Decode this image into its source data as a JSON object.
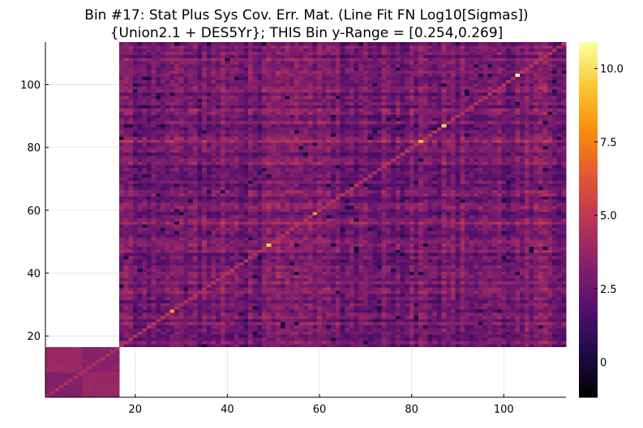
{
  "chart_data": {
    "type": "heatmap",
    "title": [
      "Bin #17: Stat Plus Sys Cov. Err. Mat. (Line Fit FN Log10[Sigmas])",
      "{Union2.1 + DES5Yr}; THIS Bin y-Range = [0.254,0.269]"
    ],
    "xlabel": "",
    "ylabel": "",
    "xlim": [
      0.5,
      113.5
    ],
    "ylim": [
      0.5,
      113.5
    ],
    "x_ticks": [
      20,
      40,
      60,
      80,
      100
    ],
    "y_ticks": [
      20,
      40,
      60,
      80,
      100
    ],
    "grid": true,
    "colormap": "inferno",
    "colorbar": {
      "range": [
        -1.2,
        10.9
      ],
      "ticks": [
        0,
        2.5,
        5.0,
        7.5,
        10.0
      ],
      "tick_labels": [
        "0",
        "2.5",
        "5.0",
        "7.5",
        "10.0"
      ]
    },
    "blocks": [
      {
        "name": "lower-left block",
        "x_range": [
          1,
          16
        ],
        "y_range": [
          1,
          16
        ],
        "approx_value": 3.5
      },
      {
        "name": "main block",
        "x_range": [
          17,
          113
        ],
        "y_range": [
          17,
          113
        ],
        "approx_background_value": 2.8
      }
    ],
    "diagonal_value_approx": 4.6,
    "diagonal_hot_spots": [
      {
        "index": 28,
        "value": 8.2
      },
      {
        "index": 49,
        "value": 9.6
      },
      {
        "index": 59,
        "value": 7.6
      },
      {
        "index": 82,
        "value": 9.3
      },
      {
        "index": 87,
        "value": 9.9
      },
      {
        "index": 103,
        "value": 10.6
      }
    ]
  }
}
